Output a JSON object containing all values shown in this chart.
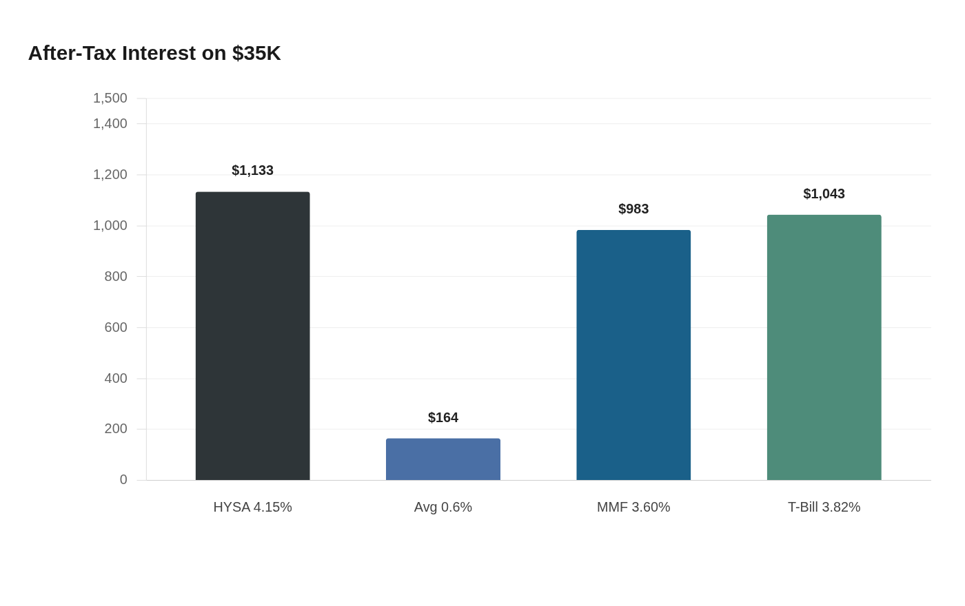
{
  "chart_data": {
    "type": "bar",
    "title": "After-Tax Interest on $35K",
    "categories": [
      "HYSA 4.15%",
      "Avg 0.6%",
      "MMF 3.60%",
      "T-Bill 3.82%"
    ],
    "values": [
      1133,
      164,
      983,
      1043
    ],
    "colors": [
      "#2e3538",
      "#4a6fa5",
      "#1a6089",
      "#4e8c7a"
    ],
    "value_labels": [
      "$1,133",
      "$164",
      "$983",
      "$1,043"
    ],
    "ylim": [
      0,
      1500
    ],
    "yticks": [
      0,
      200,
      400,
      600,
      800,
      {
        "value": 1000,
        "label": "1,000"
      },
      {
        "value": 1200,
        "label": "1,200"
      },
      {
        "value": 1400,
        "label": "1,400"
      },
      {
        "value": 1500,
        "label": "1,500"
      }
    ],
    "grid": "y",
    "legend": false
  }
}
